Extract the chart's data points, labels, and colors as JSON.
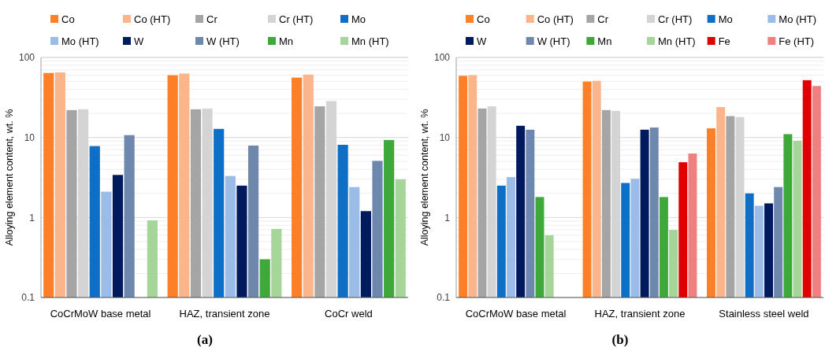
{
  "chart_data": [
    {
      "type": "bar",
      "title": "(a)",
      "ylabel": "Alloying element content, wt. %",
      "log": "y",
      "grid": "y",
      "legend": "top",
      "ylim": [
        0.1,
        100
      ],
      "yticks": [
        0.1,
        {
          "value": 0.2,
          "label": null
        },
        {
          "value": 0.3,
          "label": null
        },
        {
          "value": 0.4,
          "label": null
        },
        {
          "value": 0.5,
          "label": null
        },
        {
          "value": 0.6,
          "label": null
        },
        {
          "value": 0.7,
          "label": null
        },
        {
          "value": 0.8,
          "label": null
        },
        {
          "value": 0.9,
          "label": null
        },
        1,
        {
          "value": 2,
          "label": null
        },
        {
          "value": 3,
          "label": null
        },
        {
          "value": 4,
          "label": null
        },
        {
          "value": 5,
          "label": null
        },
        {
          "value": 6,
          "label": null
        },
        {
          "value": 7,
          "label": null
        },
        {
          "value": 8,
          "label": null
        },
        {
          "value": 9,
          "label": null
        },
        10,
        {
          "value": 20,
          "label": null
        },
        {
          "value": 30,
          "label": null
        },
        {
          "value": 40,
          "label": null
        },
        {
          "value": 50,
          "label": null
        },
        {
          "value": 60,
          "label": null
        },
        {
          "value": 70,
          "label": null
        },
        {
          "value": 80,
          "label": null
        },
        {
          "value": 90,
          "label": null
        },
        100
      ],
      "categories": [
        "CoCrMoW base metal",
        "HAZ, transient zone",
        "CoCr weld"
      ],
      "series": [
        {
          "name": "Co",
          "color": "#fd7f27",
          "values": [
            64,
            60,
            56
          ]
        },
        {
          "name": "Co (HT)",
          "color": "#fbb58b",
          "values": [
            65,
            63,
            61
          ]
        },
        {
          "name": "Cr",
          "color": "#a5a5a5",
          "values": [
            22,
            22.5,
            24.5
          ]
        },
        {
          "name": "Cr (HT)",
          "color": "#d4d4d4",
          "values": [
            22.5,
            23,
            28.5
          ]
        },
        {
          "name": "Mo",
          "color": "#0f6fc6",
          "values": [
            7.8,
            12.8,
            8.1
          ]
        },
        {
          "name": "Mo (HT)",
          "color": "#9bbce6",
          "values": [
            2.1,
            3.3,
            2.4
          ]
        },
        {
          "name": "W",
          "color": "#001a5e",
          "values": [
            3.4,
            2.5,
            1.2
          ]
        },
        {
          "name": "W (HT)",
          "color": "#6e87ad",
          "values": [
            10.7,
            7.9,
            5.1
          ]
        },
        {
          "name": "Mn",
          "color": "#3ea83a",
          "values": [
            null,
            0.3,
            9.3
          ]
        },
        {
          "name": "Mn (HT)",
          "color": "#a6d59a",
          "values": [
            0.92,
            0.72,
            3.0
          ]
        }
      ]
    },
    {
      "type": "bar",
      "title": "(b)",
      "ylabel": "Alloying element content, wt. %",
      "log": "y",
      "grid": "y",
      "legend": "top",
      "ylim": [
        0.1,
        100
      ],
      "yticks": [
        0.1,
        {
          "value": 0.2,
          "label": null
        },
        {
          "value": 0.3,
          "label": null
        },
        {
          "value": 0.4,
          "label": null
        },
        {
          "value": 0.5,
          "label": null
        },
        {
          "value": 0.6,
          "label": null
        },
        {
          "value": 0.7,
          "label": null
        },
        {
          "value": 0.8,
          "label": null
        },
        {
          "value": 0.9,
          "label": null
        },
        1,
        {
          "value": 2,
          "label": null
        },
        {
          "value": 3,
          "label": null
        },
        {
          "value": 4,
          "label": null
        },
        {
          "value": 5,
          "label": null
        },
        {
          "value": 6,
          "label": null
        },
        {
          "value": 7,
          "label": null
        },
        {
          "value": 8,
          "label": null
        },
        {
          "value": 9,
          "label": null
        },
        10,
        {
          "value": 20,
          "label": null
        },
        {
          "value": 30,
          "label": null
        },
        {
          "value": 40,
          "label": null
        },
        {
          "value": 50,
          "label": null
        },
        {
          "value": 60,
          "label": null
        },
        {
          "value": 70,
          "label": null
        },
        {
          "value": 80,
          "label": null
        },
        {
          "value": 90,
          "label": null
        },
        100
      ],
      "categories": [
        "CoCrMoW base metal",
        "HAZ, transient zone",
        "Stainless steel weld"
      ],
      "series": [
        {
          "name": "Co",
          "color": "#fd7f27",
          "values": [
            59,
            50,
            13
          ]
        },
        {
          "name": "Co (HT)",
          "color": "#fbb58b",
          "values": [
            60,
            51,
            24
          ]
        },
        {
          "name": "Cr",
          "color": "#a5a5a5",
          "values": [
            23,
            22,
            18.5
          ]
        },
        {
          "name": "Cr (HT)",
          "color": "#d4d4d4",
          "values": [
            24.5,
            21.5,
            18
          ]
        },
        {
          "name": "Mo",
          "color": "#0f6fc6",
          "values": [
            2.5,
            2.7,
            2
          ]
        },
        {
          "name": "Mo (HT)",
          "color": "#9bbce6",
          "values": [
            3.2,
            3.05,
            1.4
          ]
        },
        {
          "name": "W",
          "color": "#001a5e",
          "values": [
            14,
            12.5,
            1.5
          ]
        },
        {
          "name": "W (HT)",
          "color": "#6e87ad",
          "values": [
            12.5,
            13.3,
            2.4
          ]
        },
        {
          "name": "Mn",
          "color": "#3ea83a",
          "values": [
            1.8,
            1.8,
            11
          ]
        },
        {
          "name": "Mn (HT)",
          "color": "#a6d59a",
          "values": [
            0.6,
            0.7,
            9.1
          ]
        },
        {
          "name": "Fe",
          "color": "#e00000",
          "values": [
            null,
            4.9,
            52
          ]
        },
        {
          "name": "Fe (HT)",
          "color": "#f08080",
          "values": [
            null,
            6.3,
            44
          ]
        }
      ]
    }
  ]
}
